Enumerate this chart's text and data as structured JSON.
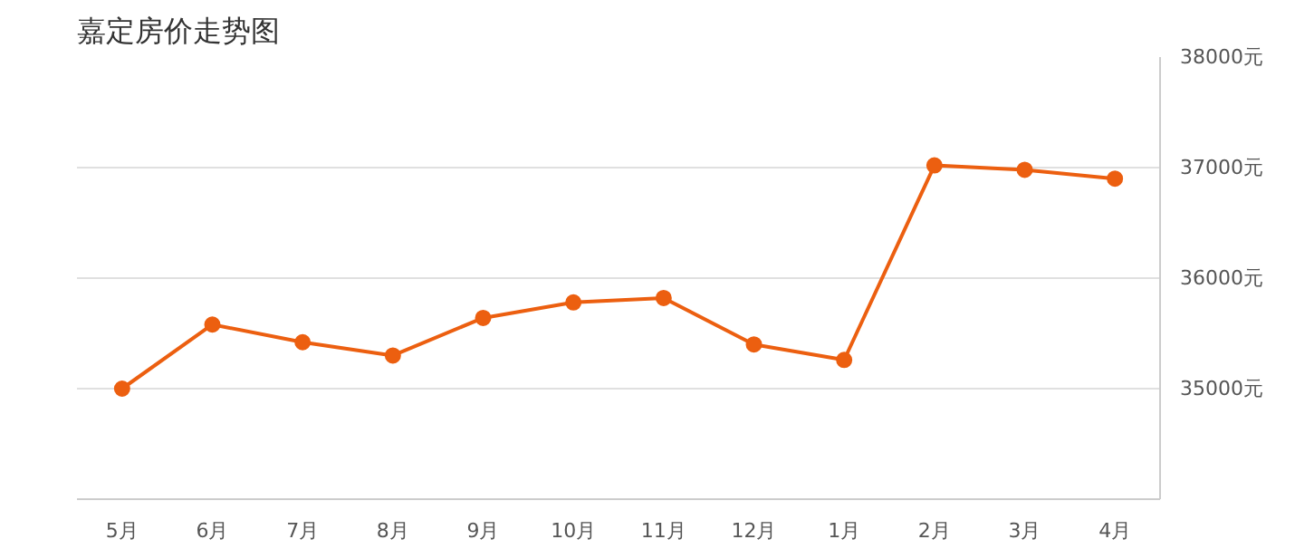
{
  "chart_data": {
    "type": "line",
    "title": "嘉定房价走势图",
    "categories": [
      "5月",
      "6月",
      "7月",
      "8月",
      "9月",
      "10月",
      "11月",
      "12月",
      "1月",
      "2月",
      "3月",
      "4月"
    ],
    "series": [
      {
        "color": "#ec5f10",
        "values": [
          35000,
          35580,
          35420,
          35300,
          35640,
          35780,
          35820,
          35400,
          35260,
          37020,
          36980,
          36900
        ]
      }
    ],
    "ylim": [
      34000,
      38000
    ],
    "yticks": [
      {
        "value": 35000,
        "label": "35000元"
      },
      {
        "value": 36000,
        "label": "36000元"
      },
      {
        "value": 37000,
        "label": "37000元"
      },
      {
        "value": 38000,
        "label": "38000元"
      }
    ],
    "grid": "y",
    "marker": "circle",
    "line_style": "solid"
  }
}
